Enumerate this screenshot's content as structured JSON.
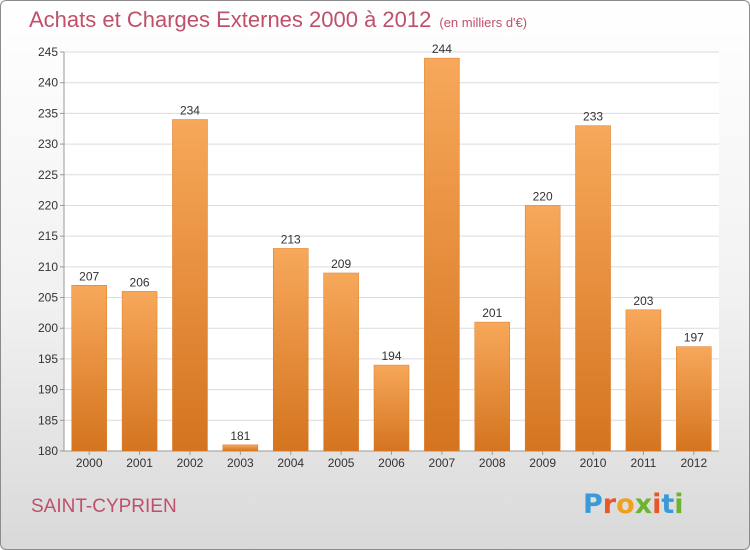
{
  "title": "Achats et Charges Externes 2000 à 2012",
  "subtitle": "(en milliers d'€)",
  "location": "SAINT-CYPRIEN",
  "brand": {
    "text": "Proxiti",
    "letter_colors": [
      "#3a9ad9",
      "#e8562a",
      "#f0a020",
      "#6bb42f",
      "#e8562a",
      "#3a9ad9",
      "#6bb42f"
    ]
  },
  "colors": {
    "title": "#c0506a",
    "bar_light": "#f7a85a",
    "bar_dark": "#d4741f"
  },
  "chart_data": {
    "type": "bar",
    "categories": [
      "2000",
      "2001",
      "2002",
      "2003",
      "2004",
      "2005",
      "2006",
      "2007",
      "2008",
      "2009",
      "2010",
      "2011",
      "2012"
    ],
    "values": [
      207,
      206,
      234,
      181,
      213,
      209,
      194,
      244,
      201,
      220,
      233,
      203,
      197
    ],
    "ylim": [
      180,
      245
    ],
    "yticks": [
      180,
      185,
      190,
      195,
      200,
      205,
      210,
      215,
      220,
      225,
      230,
      235,
      240,
      245
    ],
    "grid": true,
    "xlabel": "",
    "ylabel": ""
  }
}
